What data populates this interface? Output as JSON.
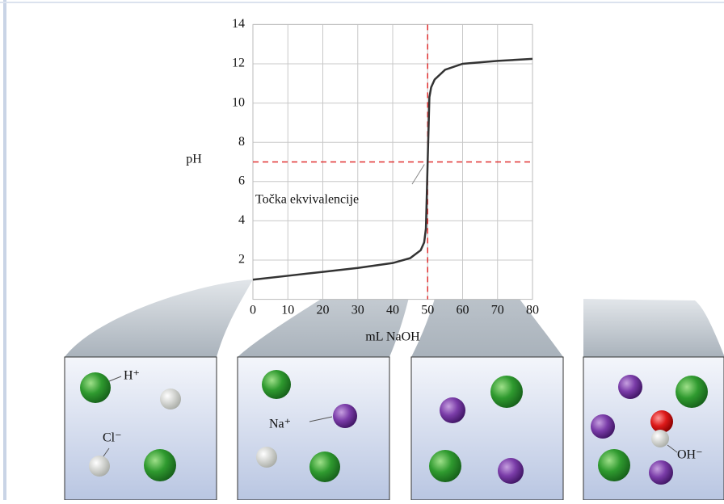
{
  "chart_data": {
    "type": "line",
    "ylabel": "pH",
    "xlabel": "mL NaOH",
    "x": [
      0,
      10,
      20,
      30,
      40,
      45,
      48,
      49,
      49.5,
      50,
      50.5,
      51,
      52,
      55,
      60,
      70,
      80
    ],
    "series": [
      {
        "color": "#333333",
        "values": [
          1.0,
          1.2,
          1.4,
          1.6,
          1.85,
          2.1,
          2.5,
          2.9,
          3.6,
          7.0,
          10.3,
          10.8,
          11.2,
          11.7,
          12.0,
          12.15,
          12.25
        ]
      }
    ],
    "xlim": [
      0,
      80
    ],
    "xticks": [
      0,
      10,
      20,
      30,
      40,
      50,
      60,
      70,
      80
    ],
    "ylim": [
      0,
      14
    ],
    "yticks": [
      2,
      4,
      6,
      8,
      10,
      12,
      14
    ],
    "grid": true,
    "equivalence_point": {
      "x": 50,
      "y": 7,
      "label": "Točka ekvivalencije",
      "color": "#e03030"
    },
    "ion_labels": [
      "H⁺",
      "Cl⁻",
      "Na⁺",
      "OH⁻"
    ]
  }
}
